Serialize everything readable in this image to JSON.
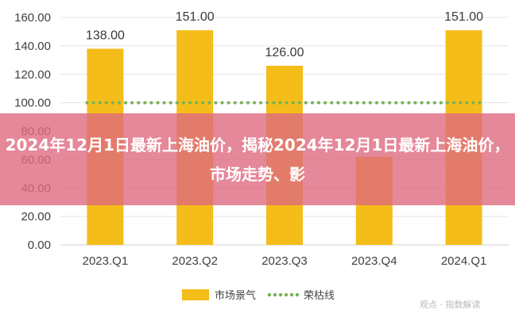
{
  "banner": {
    "title": "2024年12月1日最新上海油价，揭秘2024年12月1日最新上海油价，市场走势、影"
  },
  "chart_data": {
    "type": "bar",
    "categories": [
      "2023.Q1",
      "2023.Q2",
      "2023.Q3",
      "2023.Q4",
      "2024.Q1"
    ],
    "series": [
      {
        "name": "市场景气",
        "type": "bar",
        "values": [
          138.0,
          151.0,
          126.0,
          62.0,
          151.0
        ],
        "labels": [
          "138.00",
          "151.00",
          "126.00",
          "",
          "151.00"
        ],
        "color": "#f5bd19"
      },
      {
        "name": "荣枯线",
        "type": "line",
        "style": "dotted",
        "values": [
          100,
          100,
          100,
          100,
          100
        ],
        "color": "#77b255"
      }
    ],
    "yticks": [
      "0.00",
      "20.00",
      "40.00",
      "60.00",
      "80.00",
      "100.00",
      "120.00",
      "140.00",
      "160.00"
    ],
    "ylim": [
      0,
      160
    ],
    "grid": true,
    "legend": "bottom-center"
  },
  "watermark": "观点 · 指数解读"
}
